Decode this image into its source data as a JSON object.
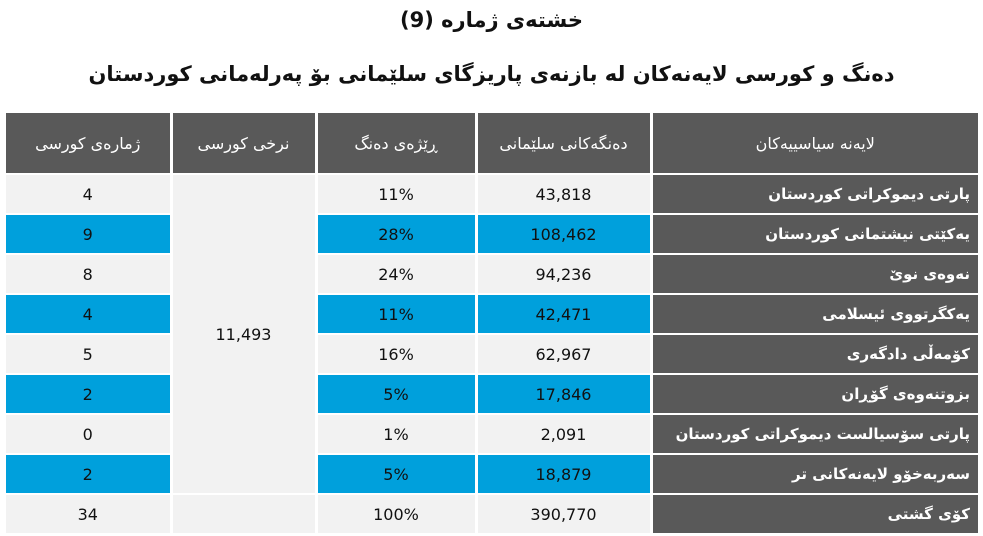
{
  "title": "خشتەی ژمارە (9)",
  "subtitle": "دەنگ و کورسی لایەنەکان لە بازنەی پاریزگای سلێمانی بۆ پەرلەمانی کوردستان",
  "headers": {
    "seats": "ژمارەی کورسی",
    "quota": "نرخی کورسی",
    "percent": "ڕێژەی دەنگ",
    "votes": "دەنگەکانی سلێمانی",
    "party": "لایەنە سیاسییەکان"
  },
  "quota_value": "11,493",
  "rows": [
    {
      "party": "پارتی دیموکراتی کوردستان",
      "votes": "43,818",
      "percent": "11%",
      "seats": "4",
      "style": "light"
    },
    {
      "party": "یەکێتی نیشتمانی کوردستان",
      "votes": "108,462",
      "percent": "28%",
      "seats": "9",
      "style": "blue"
    },
    {
      "party": "نەوەی نوێ",
      "votes": "94,236",
      "percent": "24%",
      "seats": "8",
      "style": "light"
    },
    {
      "party": "یەکگرتووی ئیسلامی",
      "votes": "42,471",
      "percent": "11%",
      "seats": "4",
      "style": "blue"
    },
    {
      "party": "کۆمەڵی دادگەری",
      "votes": "62,967",
      "percent": "16%",
      "seats": "5",
      "style": "light"
    },
    {
      "party": "بزوتنەوەی گۆڕان",
      "votes": "17,846",
      "percent": "5%",
      "seats": "2",
      "style": "blue"
    },
    {
      "party": "پارتی سۆسیالست دیموکراتی کوردستان",
      "votes": "2,091",
      "percent": "1%",
      "seats": "0",
      "style": "light"
    },
    {
      "party": "سەربەخۆو لایەنەکانی تر",
      "votes": "18,879",
      "percent": "5%",
      "seats": "2",
      "style": "blue"
    }
  ],
  "total": {
    "party": "کۆی گشتی",
    "votes": "390,770",
    "percent": "100%",
    "seats": "34"
  },
  "colors": {
    "header": "#595959",
    "blue": "#00a0dc",
    "light": "#f2f2f2"
  }
}
